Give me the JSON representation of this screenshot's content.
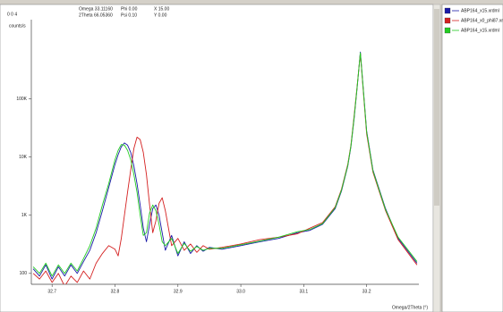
{
  "chart_data": {
    "type": "line",
    "reflection": "0 0 4",
    "annotations": [
      "Omega 33.11160",
      "Phi 0.00",
      "X 15.00",
      "2Theta 66.05360",
      "Psi 0.10",
      "Y 0.00"
    ],
    "y_label": "counts/s",
    "x_label": "Omega/2Theta (°)",
    "log_y": true,
    "legend": "right",
    "x": [
      32.67,
      32.68,
      32.69,
      32.7,
      32.71,
      32.72,
      32.73,
      32.74,
      32.75,
      32.76,
      32.77,
      32.78,
      32.79,
      32.8,
      32.805,
      32.81,
      32.815,
      32.82,
      32.825,
      32.83,
      32.835,
      32.84,
      32.845,
      32.85,
      32.855,
      32.86,
      32.865,
      32.87,
      32.875,
      32.88,
      32.89,
      32.9,
      32.91,
      32.92,
      32.93,
      32.94,
      32.95,
      32.97,
      33.0,
      33.03,
      33.06,
      33.09,
      33.11,
      33.13,
      33.15,
      33.16,
      33.17,
      33.175,
      33.18,
      33.185,
      33.19,
      33.2,
      33.21,
      33.23,
      33.25,
      33.28
    ],
    "series": [
      {
        "name": "ABP164_x15.xrdml",
        "color": "#1a1aa8",
        "values": [
          120,
          90,
          140,
          80,
          130,
          90,
          140,
          100,
          160,
          250,
          500,
          1200,
          3000,
          7500,
          11000,
          15000,
          17500,
          16000,
          12000,
          7000,
          3500,
          1500,
          600,
          350,
          700,
          1300,
          1500,
          1000,
          500,
          250,
          450,
          200,
          350,
          220,
          300,
          240,
          280,
          260,
          300,
          350,
          400,
          500,
          550,
          700,
          1300,
          2600,
          7000,
          15000,
          45000,
          160000,
          640000,
          28000,
          6000,
          1300,
          400,
          150
        ]
      },
      {
        "name": "ABP164_x0_phi87.xrdml",
        "color": "#d42020",
        "values": [
          100,
          80,
          110,
          70,
          100,
          60,
          90,
          70,
          110,
          80,
          150,
          220,
          300,
          260,
          200,
          400,
          1000,
          2500,
          6000,
          14000,
          22000,
          20000,
          12000,
          5000,
          1500,
          500,
          800,
          1600,
          2000,
          1200,
          300,
          400,
          250,
          320,
          230,
          300,
          260,
          280,
          320,
          380,
          420,
          480,
          600,
          750,
          1400,
          2800,
          7500,
          16000,
          50000,
          170000,
          600000,
          25000,
          5500,
          1200,
          380,
          140
        ]
      },
      {
        "name": "ABP164_x15.xrdml",
        "color": "#22cc22",
        "values": [
          130,
          100,
          150,
          90,
          140,
          100,
          150,
          110,
          180,
          300,
          600,
          1500,
          3500,
          9000,
          13000,
          16500,
          16000,
          13000,
          9000,
          5000,
          2500,
          1000,
          450,
          500,
          1100,
          1500,
          1200,
          700,
          350,
          300,
          400,
          220,
          330,
          240,
          290,
          250,
          270,
          270,
          310,
          360,
          420,
          520,
          570,
          720,
          1350,
          2700,
          7200,
          15500,
          47000,
          165000,
          620000,
          27000,
          5800,
          1250,
          420,
          160
        ]
      }
    ],
    "xlim": [
      32.667,
      33.283
    ],
    "xticks": [
      32.7,
      32.8,
      32.9,
      {
        "value": 33,
        "label": "33.0"
      },
      33.1,
      33.2
    ],
    "ylim": [
      65,
      2300000
    ],
    "yticks": [
      100,
      {
        "value": 1000,
        "label": "1K"
      },
      {
        "value": 10000,
        "label": "10K"
      },
      {
        "value": 100000,
        "label": "100K"
      }
    ]
  }
}
